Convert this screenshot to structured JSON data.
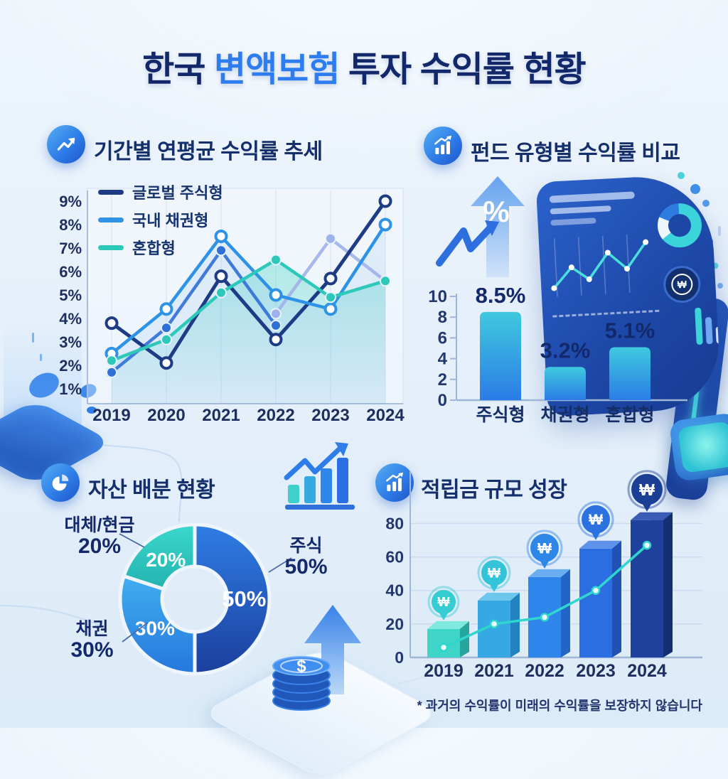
{
  "header": {
    "title_segments": [
      {
        "text": "한국 ",
        "color": "#13286b"
      },
      {
        "text": "변액보험",
        "color": "#2e7df0"
      },
      {
        "text": " 투자 수익률 현황",
        "color": "#13286b"
      }
    ]
  },
  "sections": {
    "trend": {
      "title": "기간별 연평균 수익률 추세",
      "icon": "line-chart-icon"
    },
    "compare": {
      "title": "펀드 유형별 수익률 비교",
      "icon": "bar-growth-icon"
    },
    "allocation": {
      "title": "자산 배분 현황",
      "icon": "pie-chart-icon"
    },
    "growth": {
      "title": "적립금 규모 성장",
      "icon": "bar-growth-icon"
    }
  },
  "decor": {
    "percent": "%",
    "dollar": "$",
    "won": "₩"
  },
  "footnote": "* 과거의 수익률이 미래의 수익률을 보장하지 않습니다",
  "colors": {
    "navy": "#13286b",
    "blue": "#2e7df0",
    "teal": "#2cc9bb",
    "background": "#e8f1fa"
  },
  "chart_data": [
    {
      "id": "period_return_trend",
      "type": "line",
      "title": "기간별 연평균 수익률 추세",
      "x": [
        "2019",
        "2020",
        "2021",
        "2022",
        "2023",
        "2024"
      ],
      "y_tick_labels": [
        "9%",
        "8%",
        "7%",
        "6%",
        "5%",
        "4%",
        "3%",
        "2%",
        "1%"
      ],
      "ylim": [
        1,
        9
      ],
      "unit": "%",
      "grid": "vertical-faint",
      "legend_position": "top-left",
      "series": [
        {
          "name": "글로벌 주식형",
          "color": "#1e3c85",
          "marker": "open",
          "values": [
            3.8,
            2.1,
            5.8,
            3.1,
            5.7,
            9.0
          ]
        },
        {
          "name": "국내 채권형",
          "color": "#2e93e6",
          "marker": "open",
          "values": [
            2.5,
            4.4,
            7.5,
            5.0,
            4.4,
            8.0
          ]
        },
        {
          "name": "혼합형",
          "color": "#2cc9bb",
          "marker": "filled",
          "values": [
            2.2,
            3.1,
            5.1,
            6.5,
            4.9,
            5.6
          ]
        }
      ],
      "unlabeled_series": [
        {
          "name": "보조선-로열블루",
          "color": "#2f6fd8",
          "marker": "filled",
          "values": [
            1.7,
            3.6,
            6.9,
            3.7,
            null,
            null
          ]
        },
        {
          "name": "보조선-라벤더",
          "color": "#9fb1e9",
          "marker": "filled",
          "values": [
            null,
            null,
            null,
            4.2,
            7.4,
            5.6
          ]
        }
      ]
    },
    {
      "id": "fund_type_return_compare",
      "type": "bar",
      "title": "펀드 유형별 수익률 비교",
      "categories": [
        "주식형",
        "채권형",
        "혼합형"
      ],
      "values": [
        8.5,
        3.2,
        5.1
      ],
      "value_labels": [
        "8.5%",
        "3.2%",
        "5.1%"
      ],
      "y_ticks": [
        10,
        8,
        6,
        4,
        2,
        0
      ],
      "ylim": [
        0,
        10
      ],
      "bar_gradient": [
        "#3fc9de",
        "#2b7ce6"
      ]
    },
    {
      "id": "asset_allocation",
      "type": "pie",
      "title": "자산 배분 현황",
      "donut": true,
      "slices": [
        {
          "label": "주식",
          "pct": 50,
          "pct_label": "50%",
          "inner_label": "50%",
          "color_top": "#2f7de4",
          "color_bottom": "#1b3f9e"
        },
        {
          "label": "채권",
          "pct": 30,
          "pct_label": "30%",
          "inner_label": "30%",
          "color_top": "#41aef0",
          "color_bottom": "#2577dd"
        },
        {
          "label": "대체/현금",
          "pct": 20,
          "pct_label": "20%",
          "inner_label": "20%",
          "color_top": "#3bd8cc",
          "color_bottom": "#23b3b0"
        }
      ]
    },
    {
      "id": "reserve_growth",
      "type": "bar",
      "title": "적립금 규모 성장",
      "categories": [
        "2019",
        "2021",
        "2022",
        "2023",
        "2024"
      ],
      "values": [
        17,
        34,
        48,
        65,
        82
      ],
      "trend_line": [
        6,
        20,
        24,
        40,
        67
      ],
      "y_ticks": [
        80,
        60,
        40,
        20,
        0
      ],
      "ylim": [
        0,
        88
      ],
      "bar_colors": [
        "#3fd4c8",
        "#36a8e2",
        "#2f86ea",
        "#2b6ee2",
        "#1e419c"
      ],
      "bar_colors_dark": [
        "#27a49c",
        "#2382c0",
        "#2165c6",
        "#2052b4",
        "#142e72"
      ],
      "bar_colors_top": [
        "#7fe9df",
        "#6cc6ee",
        "#6aaef2",
        "#5e92ec",
        "#3a5cb4"
      ],
      "badge_colors": [
        "#35ccd2",
        "#33c4da",
        "#2e86e8",
        "#2b72e0",
        "#1c3f96"
      ],
      "badge_symbol": "₩"
    }
  ]
}
